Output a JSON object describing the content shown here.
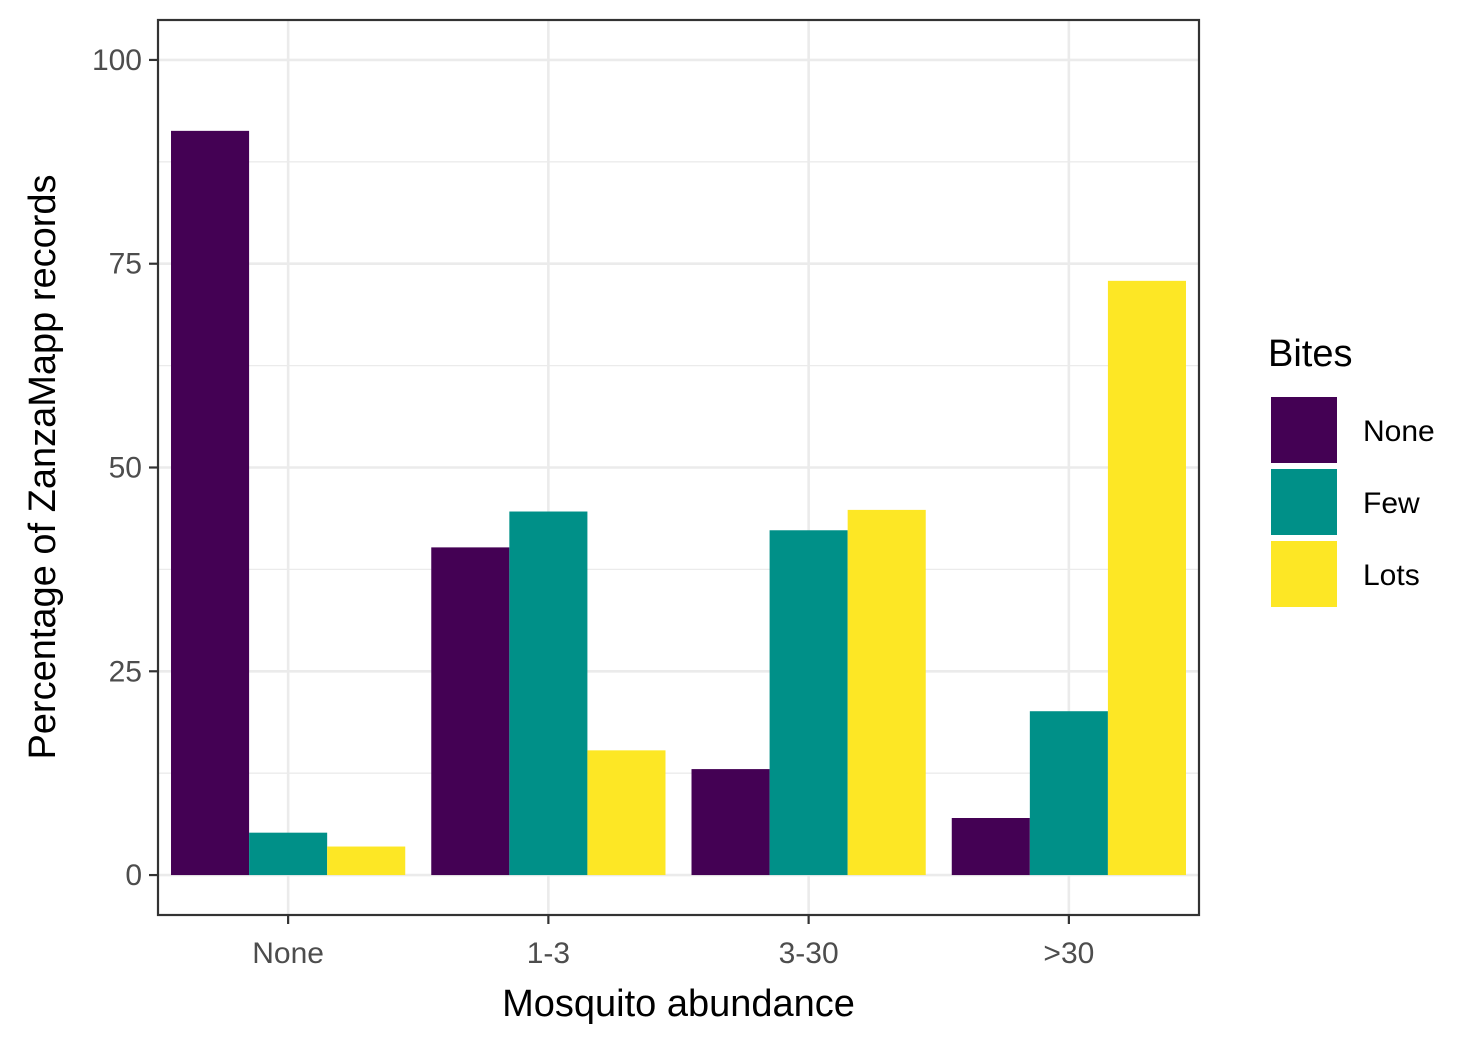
{
  "chart_data": {
    "type": "bar",
    "title": "",
    "xlabel": "Mosquito abundance",
    "ylabel": "Percentage of ZanzaMapp records",
    "categories": [
      "None",
      "1-3",
      "3-30",
      ">30"
    ],
    "series": [
      {
        "name": "None",
        "color": "#440154",
        "values": [
          91.3,
          40.2,
          13.0,
          7.0
        ]
      },
      {
        "name": "Few",
        "color": "#009088",
        "values": [
          5.2,
          44.6,
          42.3,
          20.1
        ]
      },
      {
        "name": "Lots",
        "color": "#FDE725",
        "values": [
          3.5,
          15.3,
          44.8,
          72.9
        ]
      }
    ],
    "ylim": [
      -4.9,
      104.9
    ],
    "yticks": [
      0,
      25,
      50,
      75,
      100
    ],
    "ytick_labels": [
      "0",
      "25",
      "50",
      "75",
      "100"
    ],
    "grid": true,
    "legend": {
      "title": "Bites",
      "position": "right"
    }
  }
}
